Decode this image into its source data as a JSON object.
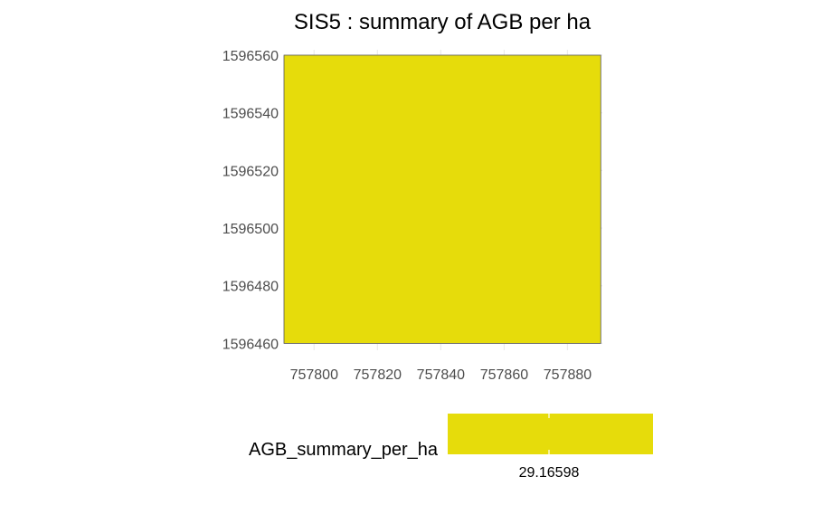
{
  "chart_data": {
    "type": "heatmap",
    "title": "SIS5 : summary of AGB per ha",
    "xlabel": "",
    "ylabel": "",
    "x_ticks": [
      757800,
      757820,
      757840,
      757860,
      757880
    ],
    "y_ticks": [
      1596460,
      1596480,
      1596500,
      1596520,
      1596540,
      1596560
    ],
    "xlim": [
      757790.5,
      757891
    ],
    "ylim": [
      1596459.5,
      1596560
    ],
    "cells": [
      {
        "xmin": 757790.5,
        "xmax": 757890.5,
        "ymin": 1596460,
        "ymax": 1596560,
        "value": 29.16598,
        "color": "#e6dc0b"
      }
    ],
    "legend": {
      "title": "AGB_summary_per_ha",
      "position": "bottom",
      "color": "#e6dc0b",
      "ticks": [
        "29.16598"
      ]
    },
    "grid": true
  }
}
